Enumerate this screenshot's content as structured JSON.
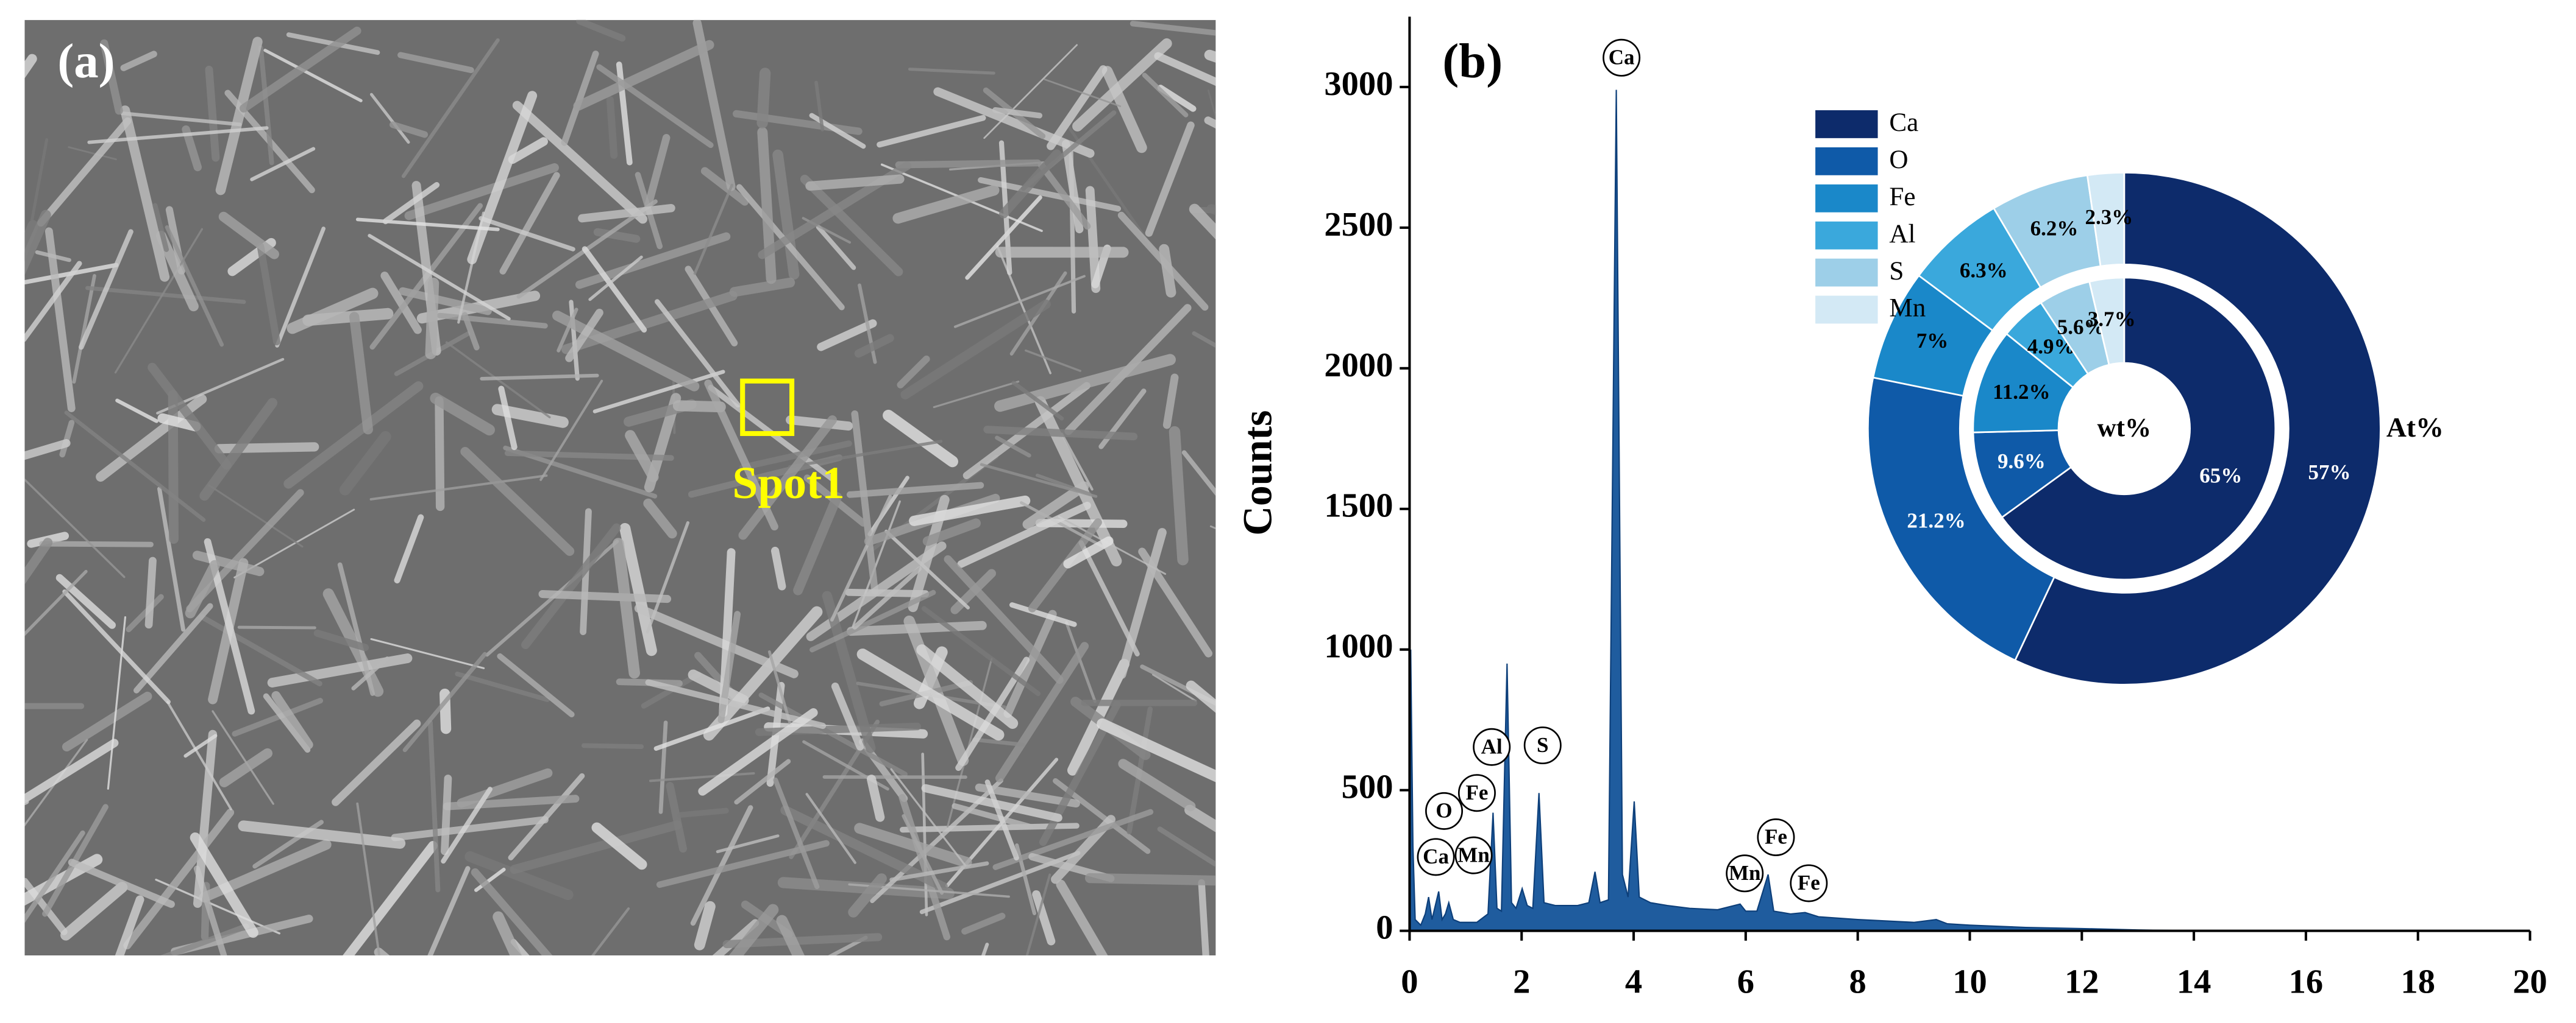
{
  "image_panel": {
    "label": "(a)",
    "annotation": "Spot1"
  },
  "chart_data": [
    {
      "type": "area",
      "panel_label": "(b)",
      "y_label": "Counts",
      "color": "#1f5c9e",
      "x": [
        0,
        0.02,
        0.06,
        0.1,
        0.2,
        0.28,
        0.34,
        0.4,
        0.52,
        0.58,
        0.64,
        0.7,
        0.78,
        0.9,
        1.0,
        1.2,
        1.4,
        1.49,
        1.56,
        1.64,
        1.74,
        1.82,
        1.9,
        2.01,
        2.1,
        2.2,
        2.31,
        2.4,
        2.6,
        3.0,
        3.2,
        3.31,
        3.4,
        3.55,
        3.69,
        3.8,
        3.9,
        4.01,
        4.1,
        4.3,
        4.6,
        5.0,
        5.5,
        5.9,
        6.0,
        6.2,
        6.4,
        6.5,
        6.8,
        7.06,
        7.3,
        8,
        9,
        9.4,
        9.6,
        10,
        11,
        12,
        13,
        14,
        20
      ],
      "values": [
        0,
        1000,
        300,
        40,
        20,
        60,
        120,
        40,
        140,
        40,
        60,
        100,
        40,
        30,
        30,
        30,
        60,
        420,
        80,
        70,
        950,
        100,
        80,
        150,
        90,
        80,
        490,
        100,
        90,
        90,
        100,
        210,
        100,
        110,
        2990,
        200,
        120,
        460,
        120,
        100,
        90,
        80,
        75,
        95,
        70,
        70,
        200,
        70,
        60,
        65,
        50,
        40,
        30,
        40,
        25,
        20,
        12,
        8,
        3,
        0,
        0
      ],
      "xlim": [
        0,
        20
      ],
      "xticks": [
        0,
        2,
        4,
        6,
        8,
        10,
        12,
        14,
        16,
        18,
        20
      ],
      "ylim": [
        0,
        3250
      ],
      "yticks": [
        0,
        500,
        1000,
        1500,
        2000,
        2500,
        3000
      ],
      "annotations": [
        "Ca",
        "Al",
        "S",
        "O",
        "Fe",
        "Ca",
        "Mn",
        "Mn",
        "Fe",
        "Fe"
      ]
    },
    {
      "type": "donut",
      "categories": [
        "Ca",
        "O",
        "Fe",
        "Al",
        "S",
        "Mn"
      ],
      "colors": [
        "#0d2b6b",
        "#0f5aa8",
        "#1a88c9",
        "#3aa8dc",
        "#9dcfe8",
        "#d3e9f5"
      ],
      "rings": [
        {
          "name": "At%",
          "values": [
            57,
            21.2,
            7,
            6.3,
            6.2,
            2.3
          ],
          "value_labels": [
            "57%",
            "21.2%",
            "7%",
            "6.3%",
            "6.2%",
            "2.3%"
          ]
        },
        {
          "name": "wt%",
          "values": [
            65,
            9.6,
            11.2,
            4.9,
            5.6,
            3.7
          ],
          "value_labels": [
            "65%",
            "9.6%",
            "11.2%",
            "4.9%",
            "5.6%",
            "3.7%"
          ]
        }
      ]
    }
  ]
}
